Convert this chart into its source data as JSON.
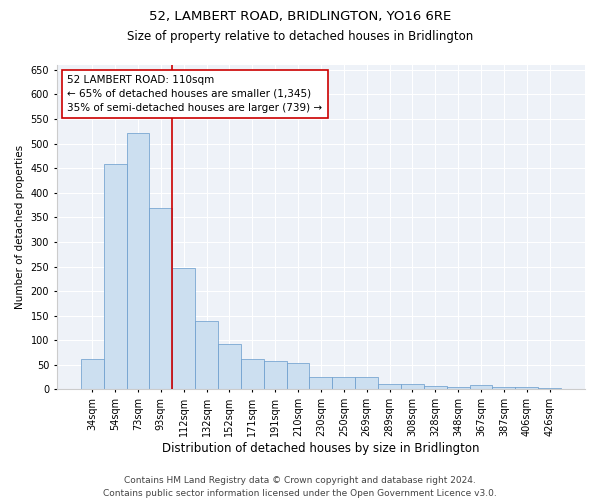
{
  "title": "52, LAMBERT ROAD, BRIDLINGTON, YO16 6RE",
  "subtitle": "Size of property relative to detached houses in Bridlington",
  "xlabel": "Distribution of detached houses by size in Bridlington",
  "ylabel": "Number of detached properties",
  "categories": [
    "34sqm",
    "54sqm",
    "73sqm",
    "93sqm",
    "112sqm",
    "132sqm",
    "152sqm",
    "171sqm",
    "191sqm",
    "210sqm",
    "230sqm",
    "250sqm",
    "269sqm",
    "289sqm",
    "308sqm",
    "328sqm",
    "348sqm",
    "367sqm",
    "387sqm",
    "406sqm",
    "426sqm"
  ],
  "values": [
    62,
    458,
    521,
    369,
    248,
    139,
    92,
    61,
    57,
    54,
    25,
    25,
    25,
    11,
    11,
    7,
    5,
    8,
    4,
    4,
    3
  ],
  "bar_color": "#ccdff0",
  "bar_edge_color": "#6699cc",
  "vline_color": "#cc0000",
  "vline_x_index": 3.5,
  "annotation_text": "52 LAMBERT ROAD: 110sqm\n← 65% of detached houses are smaller (1,345)\n35% of semi-detached houses are larger (739) →",
  "annotation_box_color": "white",
  "annotation_box_edge_color": "#cc0000",
  "annotation_fontsize": 7.5,
  "ylim": [
    0,
    660
  ],
  "yticks": [
    0,
    50,
    100,
    150,
    200,
    250,
    300,
    350,
    400,
    450,
    500,
    550,
    600,
    650
  ],
  "bg_color": "#eef2f8",
  "grid_color": "#ffffff",
  "footnote": "Contains HM Land Registry data © Crown copyright and database right 2024.\nContains public sector information licensed under the Open Government Licence v3.0.",
  "title_fontsize": 9.5,
  "subtitle_fontsize": 8.5,
  "xlabel_fontsize": 8.5,
  "ylabel_fontsize": 7.5,
  "tick_fontsize": 7,
  "footnote_fontsize": 6.5
}
